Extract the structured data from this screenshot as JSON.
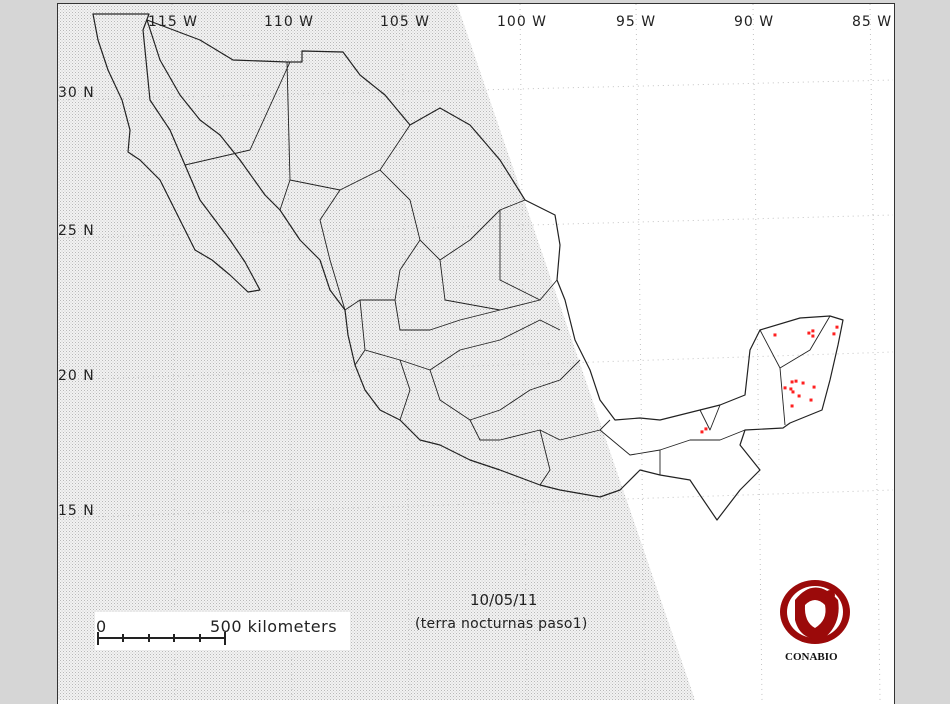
{
  "map": {
    "longitude_labels": [
      "115 W",
      "110 W",
      "105 W",
      "100 W",
      "95 W",
      "90 W",
      "85 W"
    ],
    "latitude_labels": [
      "30 N",
      "25 N",
      "20 N",
      "15 N"
    ],
    "date": "10/05/11",
    "subtitle": "(terra nocturnas paso1)",
    "scale": {
      "start_label": "0",
      "end_label": "500 kilometers"
    },
    "logo_text": "CONABIO",
    "colors": {
      "outline": "#222222",
      "hotspot": "#ff2020",
      "logo": "#9b0a0a",
      "shade": "#bdbdbd",
      "background": "#d6d6d6"
    },
    "hotspots": [
      {
        "lon": -89.36,
        "lat": 21.52
      },
      {
        "lon": -87.91,
        "lat": 21.59
      },
      {
        "lon": -87.74,
        "lat": 21.67
      },
      {
        "lon": -87.74,
        "lat": 21.48
      },
      {
        "lon": -86.71,
        "lat": 21.81
      },
      {
        "lon": -86.84,
        "lat": 21.56
      },
      {
        "lon": -88.63,
        "lat": 19.78
      },
      {
        "lon": -88.46,
        "lat": 19.81
      },
      {
        "lon": -88.16,
        "lat": 19.74
      },
      {
        "lon": -87.69,
        "lat": 19.59
      },
      {
        "lon": -88.68,
        "lat": 19.52
      },
      {
        "lon": -88.59,
        "lat": 19.41
      },
      {
        "lon": -88.33,
        "lat": 19.26
      },
      {
        "lon": -88.63,
        "lat": 18.89
      },
      {
        "lon": -87.82,
        "lat": 19.11
      },
      {
        "lon": -88.93,
        "lat": 19.56
      },
      {
        "lon": -92.31,
        "lat": 18.04
      },
      {
        "lon": -92.48,
        "lat": 17.93
      }
    ]
  }
}
